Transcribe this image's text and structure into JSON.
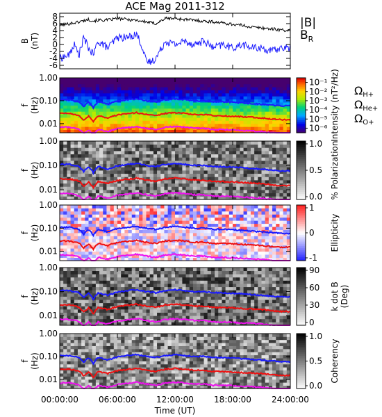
{
  "chart_data": {
    "title": "ACE Mag 2011-312",
    "xlabel": "Time (UT)",
    "x_ticks": [
      "00:00:00",
      "06:00:00",
      "12:00:00",
      "18:00:00",
      "24:00:00"
    ],
    "x_tick_values_hours": [
      0,
      6,
      12,
      18,
      24
    ],
    "xlim_hours": [
      0,
      24
    ],
    "panels": [
      {
        "type": "line",
        "ylabel": "B",
        "yunit": "(nT)",
        "ylim": [
          -7,
          9
        ],
        "y_ticks": [
          -6,
          -4,
          -2,
          0,
          2,
          4,
          6,
          8
        ],
        "y_tick_labels": [
          "-6",
          "-4",
          "-2",
          "0",
          "2",
          "4",
          "6",
          "8"
        ],
        "series": [
          {
            "name": "|B|",
            "color": "#000000",
            "x": [
              0,
              1,
              2,
              3,
              3.5,
              4,
              5,
              6,
              7,
              8,
              9,
              10,
              11,
              12,
              13,
              14,
              15,
              16,
              17,
              18,
              19,
              20,
              21,
              22,
              23,
              24
            ],
            "y": [
              5.5,
              6.0,
              6.5,
              7.2,
              6.8,
              7.0,
              7.0,
              7.5,
              7.2,
              7.0,
              6.5,
              6.0,
              7.5,
              7.5,
              7.2,
              7.0,
              6.7,
              6.5,
              6.2,
              5.8,
              5.5,
              5.0,
              4.8,
              4.5,
              4.2,
              4.0
            ]
          },
          {
            "name": "B_R",
            "color": "#1a1aff",
            "x": [
              0,
              1,
              1.5,
              2,
              2.5,
              3,
              3.5,
              4,
              4.5,
              5,
              6,
              7,
              8,
              8.5,
              9,
              9.5,
              10,
              11,
              12,
              13,
              14,
              15,
              16,
              17,
              18,
              19,
              20,
              21,
              22,
              23,
              24
            ],
            "y": [
              -4,
              -3,
              0,
              -3,
              2,
              -1,
              -3,
              1,
              0,
              -1,
              2,
              2,
              3,
              0,
              -5,
              -5,
              -4,
              1,
              0,
              1,
              0,
              1,
              -1,
              0,
              -1,
              0,
              -1,
              -1,
              -2,
              -1,
              -1
            ]
          }
        ],
        "legend": [
          {
            "label": "|B|",
            "color": "#000000"
          },
          {
            "label": "B",
            "sub": "R",
            "color": "#1a1aff"
          }
        ]
      },
      {
        "type": "heatmap",
        "ylabel": "f",
        "yunit": "(Hz)",
        "yscale": "log",
        "ylim": [
          0.004,
          1.0
        ],
        "y_ticks": [
          1.0,
          0.1,
          0.01
        ],
        "y_tick_labels": [
          "1.00",
          "0.10",
          "0.01"
        ],
        "colormap": "rainbow",
        "colorbar_label": "Intensity (nT²/Hz)",
        "colorbar_ticks": [
          "10⁻¹",
          "10⁻²",
          "10⁻³",
          "10⁻⁴",
          "10⁻⁵",
          "10⁻⁶"
        ],
        "colorbar_range": [
          -6.5,
          -0.5
        ],
        "colorbar_scale": "log"
      },
      {
        "type": "heatmap",
        "ylabel": "f",
        "yunit": "(Hz)",
        "yscale": "log",
        "ylim": [
          0.004,
          1.0
        ],
        "y_ticks": [
          1.0,
          0.1,
          0.01
        ],
        "y_tick_labels": [
          "1.00",
          "0.10",
          "0.01"
        ],
        "colormap": "grayscale",
        "colorbar_label": "% Polarization",
        "colorbar_ticks": [
          "1.0",
          "0.5",
          "0.0"
        ],
        "colorbar_range": [
          0,
          1
        ]
      },
      {
        "type": "heatmap",
        "ylabel": "f",
        "yunit": "(Hz)",
        "yscale": "log",
        "ylim": [
          0.004,
          1.0
        ],
        "y_ticks": [
          1.0,
          0.1,
          0.01
        ],
        "y_tick_labels": [
          "1.00",
          "0.10",
          "0.01"
        ],
        "colormap": "blue-white-red",
        "colorbar_label": "Ellipticity",
        "colorbar_ticks": [
          "1",
          "0",
          "-1"
        ],
        "colorbar_range": [
          -1,
          1
        ]
      },
      {
        "type": "heatmap",
        "ylabel": "f",
        "yunit": "(Hz)",
        "yscale": "log",
        "ylim": [
          0.004,
          1.0
        ],
        "y_ticks": [
          1.0,
          0.1,
          0.01
        ],
        "y_tick_labels": [
          "1.00",
          "0.10",
          "0.01"
        ],
        "colormap": "grayscale",
        "colorbar_label": "k dot B",
        "colorbar_label2": "(Deg)",
        "colorbar_ticks": [
          "90",
          "60",
          "30",
          "0"
        ],
        "colorbar_range": [
          0,
          90
        ]
      },
      {
        "type": "heatmap",
        "ylabel": "f",
        "yunit": "(Hz)",
        "yscale": "log",
        "ylim": [
          0.004,
          1.0
        ],
        "y_ticks": [
          1.0,
          0.1,
          0.01
        ],
        "y_tick_labels": [
          "1.00",
          "0.10",
          "0.01"
        ],
        "colormap": "grayscale",
        "colorbar_label": "Coherency",
        "colorbar_ticks": [
          "1.0",
          "0.5",
          "0.0"
        ],
        "colorbar_range": [
          0,
          1
        ]
      }
    ],
    "gyrofrequency_lines": [
      {
        "label": "Ω",
        "sub": "H+",
        "color": "#1a1aff",
        "x": [
          0,
          1,
          2,
          2.5,
          3,
          3.5,
          4,
          5,
          6,
          7,
          8,
          9,
          10,
          11,
          12,
          13,
          14,
          15,
          16,
          17,
          18,
          19,
          20,
          21,
          22,
          23,
          24
        ],
        "y": [
          0.11,
          0.11,
          0.09,
          0.055,
          0.085,
          0.05,
          0.09,
          0.07,
          0.095,
          0.11,
          0.12,
          0.1,
          0.09,
          0.11,
          0.12,
          0.11,
          0.1,
          0.1,
          0.09,
          0.09,
          0.085,
          0.08,
          0.075,
          0.07,
          0.065,
          0.06,
          0.06
        ]
      },
      {
        "label": "Ω",
        "sub": "He+",
        "color": "#ee1111",
        "x": [
          0,
          1,
          2,
          2.5,
          3,
          3.5,
          4,
          5,
          6,
          7,
          8,
          9,
          10,
          11,
          12,
          13,
          14,
          15,
          16,
          17,
          18,
          19,
          20,
          21,
          22,
          23,
          24
        ],
        "y": [
          0.028,
          0.028,
          0.023,
          0.014,
          0.021,
          0.012,
          0.022,
          0.018,
          0.024,
          0.027,
          0.03,
          0.025,
          0.022,
          0.028,
          0.03,
          0.028,
          0.025,
          0.025,
          0.022,
          0.022,
          0.021,
          0.02,
          0.019,
          0.018,
          0.016,
          0.015,
          0.015
        ]
      },
      {
        "label": "Ω",
        "sub": "O+",
        "color": "#ee11ee",
        "x": [
          0,
          1,
          2,
          2.5,
          3,
          3.5,
          4,
          5,
          6,
          7,
          8,
          9,
          10,
          11,
          12,
          13,
          14,
          15,
          16,
          17,
          18,
          19,
          20,
          21,
          22,
          23,
          24
        ],
        "y": [
          0.007,
          0.007,
          0.0058,
          0.0035,
          0.0053,
          0.003,
          0.0055,
          0.0045,
          0.006,
          0.0068,
          0.0075,
          0.0063,
          0.0055,
          0.007,
          0.0075,
          0.007,
          0.0063,
          0.0063,
          0.0055,
          0.0055,
          0.0053,
          0.005,
          0.0048,
          0.0045,
          0.004,
          0.0038,
          0.0038
        ]
      }
    ]
  }
}
